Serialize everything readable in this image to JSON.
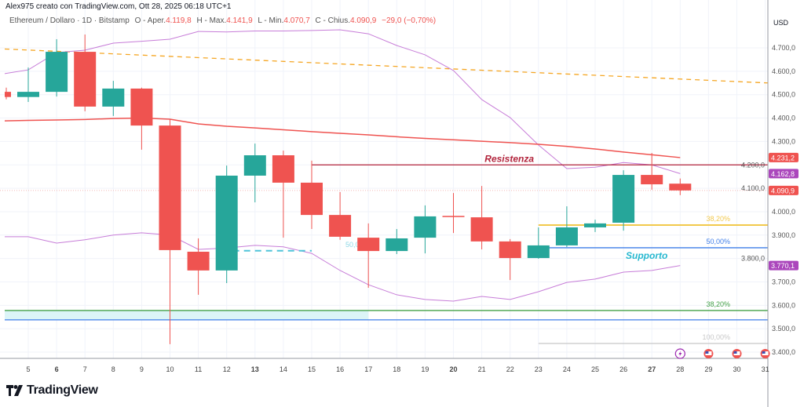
{
  "header": {
    "credit": "Alex975 creato con TradingView.com, Ott 28, 2025 06:18 UTC+1"
  },
  "legend": {
    "symbol": "Ethereum / Dollaro · 1D · Bitstamp",
    "open_label": "O - Aper.",
    "open": "4.119,8",
    "high_label": "H - Max.",
    "high": "4.141,9",
    "low_label": "L - Min.",
    "low": "4.070,7",
    "close_label": "C - Chius.",
    "close": "4.090,9",
    "change": "−29,0 (−0,70%)"
  },
  "logo": {
    "text": "TradingView"
  },
  "colors": {
    "up": "#26a69a",
    "down": "#ef5350",
    "band": "#c77dd8",
    "ma": "#ef5350",
    "trend": "#f5a623",
    "resistance": "#b2243c",
    "fib382": "#f2c94c",
    "fib50": "#3f7ee8",
    "support_text": "#26b8d0",
    "green_level": "#43a047",
    "blue_level": "#3f7ee8"
  },
  "chart_data": {
    "type": "candlestick",
    "currency": "USD",
    "ylim": [
      3370,
      4800
    ],
    "y_ticks": [
      "4.700,0",
      "4.600,0",
      "4.500,0",
      "4.400,0",
      "4.300,0",
      "4.200,0",
      "4.100,0",
      "4.000,0",
      "3.900,0",
      "3.800,0",
      "3.700,0",
      "3.600,0",
      "3.500,0",
      "3.400,0"
    ],
    "y_tick_values": [
      4700,
      4600,
      4500,
      4400,
      4300,
      4200,
      4100,
      4000,
      3900,
      3800,
      3700,
      3600,
      3500,
      3400
    ],
    "x_labels": [
      "5",
      "6",
      "7",
      "8",
      "9",
      "10",
      "11",
      "12",
      "13",
      "14",
      "15",
      "16",
      "17",
      "18",
      "19",
      "20",
      "21",
      "22",
      "23",
      "24",
      "25",
      "26",
      "27",
      "28",
      "29",
      "30",
      "31"
    ],
    "x_bold": [
      "6",
      "13",
      "20",
      "27"
    ],
    "candles": [
      {
        "d": "4",
        "o": 4512,
        "h": 4530,
        "l": 4480,
        "c": 4490
      },
      {
        "d": "5",
        "o": 4490,
        "h": 4616,
        "l": 4469,
        "c": 4512
      },
      {
        "d": "6",
        "o": 4512,
        "h": 4737,
        "l": 4492,
        "c": 4683
      },
      {
        "d": "7",
        "o": 4683,
        "h": 4757,
        "l": 4429,
        "c": 4449
      },
      {
        "d": "8",
        "o": 4449,
        "h": 4559,
        "l": 4409,
        "c": 4526
      },
      {
        "d": "9",
        "o": 4526,
        "h": 4530,
        "l": 4265,
        "c": 4368
      },
      {
        "d": "10",
        "o": 4368,
        "h": 4395,
        "l": 3434,
        "c": 3836
      },
      {
        "d": "11",
        "o": 3829,
        "h": 3886,
        "l": 3645,
        "c": 3749
      },
      {
        "d": "12",
        "o": 3749,
        "h": 4197,
        "l": 3695,
        "c": 4154
      },
      {
        "d": "13",
        "o": 4154,
        "h": 4291,
        "l": 4040,
        "c": 4241
      },
      {
        "d": "14",
        "o": 4241,
        "h": 4261,
        "l": 3889,
        "c": 4124
      },
      {
        "d": "15",
        "o": 4124,
        "h": 4218,
        "l": 3926,
        "c": 3986
      },
      {
        "d": "16",
        "o": 3986,
        "h": 4084,
        "l": 3880,
        "c": 3893
      },
      {
        "d": "17",
        "o": 3889,
        "h": 3950,
        "l": 3675,
        "c": 3832
      },
      {
        "d": "18",
        "o": 3832,
        "h": 3926,
        "l": 3819,
        "c": 3886
      },
      {
        "d": "19",
        "o": 3889,
        "h": 4027,
        "l": 3822,
        "c": 3980
      },
      {
        "d": "20",
        "o": 3982,
        "h": 4080,
        "l": 3909,
        "c": 3978
      },
      {
        "d": "21",
        "o": 3976,
        "h": 4110,
        "l": 3839,
        "c": 3873
      },
      {
        "d": "22",
        "o": 3873,
        "h": 3883,
        "l": 3708,
        "c": 3802
      },
      {
        "d": "23",
        "o": 3802,
        "h": 3933,
        "l": 3799,
        "c": 3856
      },
      {
        "d": "24",
        "o": 3856,
        "h": 4023,
        "l": 3849,
        "c": 3933
      },
      {
        "d": "25",
        "o": 3933,
        "h": 3966,
        "l": 3913,
        "c": 3950
      },
      {
        "d": "26",
        "o": 3953,
        "h": 4177,
        "l": 3919,
        "c": 4157
      },
      {
        "d": "27",
        "o": 4157,
        "h": 4251,
        "l": 4094,
        "c": 4117
      },
      {
        "d": "28",
        "o": 4119.8,
        "h": 4141.9,
        "l": 4070.7,
        "c": 4090.9
      }
    ],
    "upper_band": [
      4590,
      4606,
      4680,
      4690,
      4720,
      4728,
      4737,
      4770,
      4768,
      4772,
      4772,
      4774,
      4777,
      4760,
      4710,
      4670,
      4603,
      4479,
      4402,
      4285,
      4184,
      4190,
      4210,
      4200,
      4162.8
    ],
    "lower_band": [
      3893,
      3893,
      3866,
      3880,
      3900,
      3910,
      3900,
      3839,
      3845,
      3856,
      3850,
      3822,
      3749,
      3688,
      3645,
      3625,
      3618,
      3638,
      3625,
      3658,
      3698,
      3712,
      3742,
      3749,
      3770.1
    ],
    "moving_average": [
      4388,
      4390,
      4392,
      4394,
      4398,
      4400,
      4395,
      4375,
      4365,
      4358,
      4350,
      4342,
      4335,
      4328,
      4320,
      4313,
      4307,
      4301,
      4295,
      4288,
      4279,
      4268,
      4255,
      4243,
      4231.2
    ],
    "trendline": {
      "from": {
        "d": "4",
        "y": 4695
      },
      "to": {
        "d": "31",
        "y": 4550
      }
    },
    "levels": [
      {
        "name": "resistance",
        "price": 4200,
        "from": "15",
        "label": "Resistenza",
        "color": "#b2243c"
      },
      {
        "name": "fib-382-upper",
        "price": 3943,
        "from": "23",
        "label": "38,20%",
        "color": "#f2c94c"
      },
      {
        "name": "fib-50-upper",
        "price": 3846,
        "from": "23",
        "label": "50,00%",
        "color": "#3f7ee8"
      },
      {
        "name": "fib-382-lower",
        "price": 3578,
        "from": "4",
        "label": "38,20%",
        "color": "#43a047"
      },
      {
        "name": "blue-lower",
        "price": 3538,
        "from": "4",
        "label": "",
        "color": "#3f7ee8"
      },
      {
        "name": "fib-100",
        "price": 3437,
        "from": "23",
        "label": "100,00%",
        "color": "#c8c8c8"
      }
    ],
    "dashed_level": {
      "price": 3833,
      "from": "12",
      "to": "15",
      "label": "50,00%"
    },
    "zone": {
      "top": 3578,
      "bottom": 3538,
      "from": "4",
      "to": "17"
    },
    "support_label": "Supporto",
    "last_price_line": 4090.9,
    "axis_badges": [
      {
        "text": "4.231,2",
        "price": 4231.2,
        "color": "#ef5350"
      },
      {
        "text": "4.162,8",
        "price": 4162.8,
        "color": "#ab47bc"
      },
      {
        "text": "4.090,9",
        "price": 4090.9,
        "color": "#ef5350"
      },
      {
        "text": "3.770,1",
        "price": 3770.1,
        "color": "#ab47bc"
      }
    ],
    "events": [
      {
        "d": "28",
        "icon": "lightning-icon"
      },
      {
        "d": "29",
        "icon": "us-flag-icon"
      },
      {
        "d": "30",
        "icon": "us-flag-icon"
      },
      {
        "d": "31",
        "icon": "us-flag-icon"
      }
    ]
  }
}
